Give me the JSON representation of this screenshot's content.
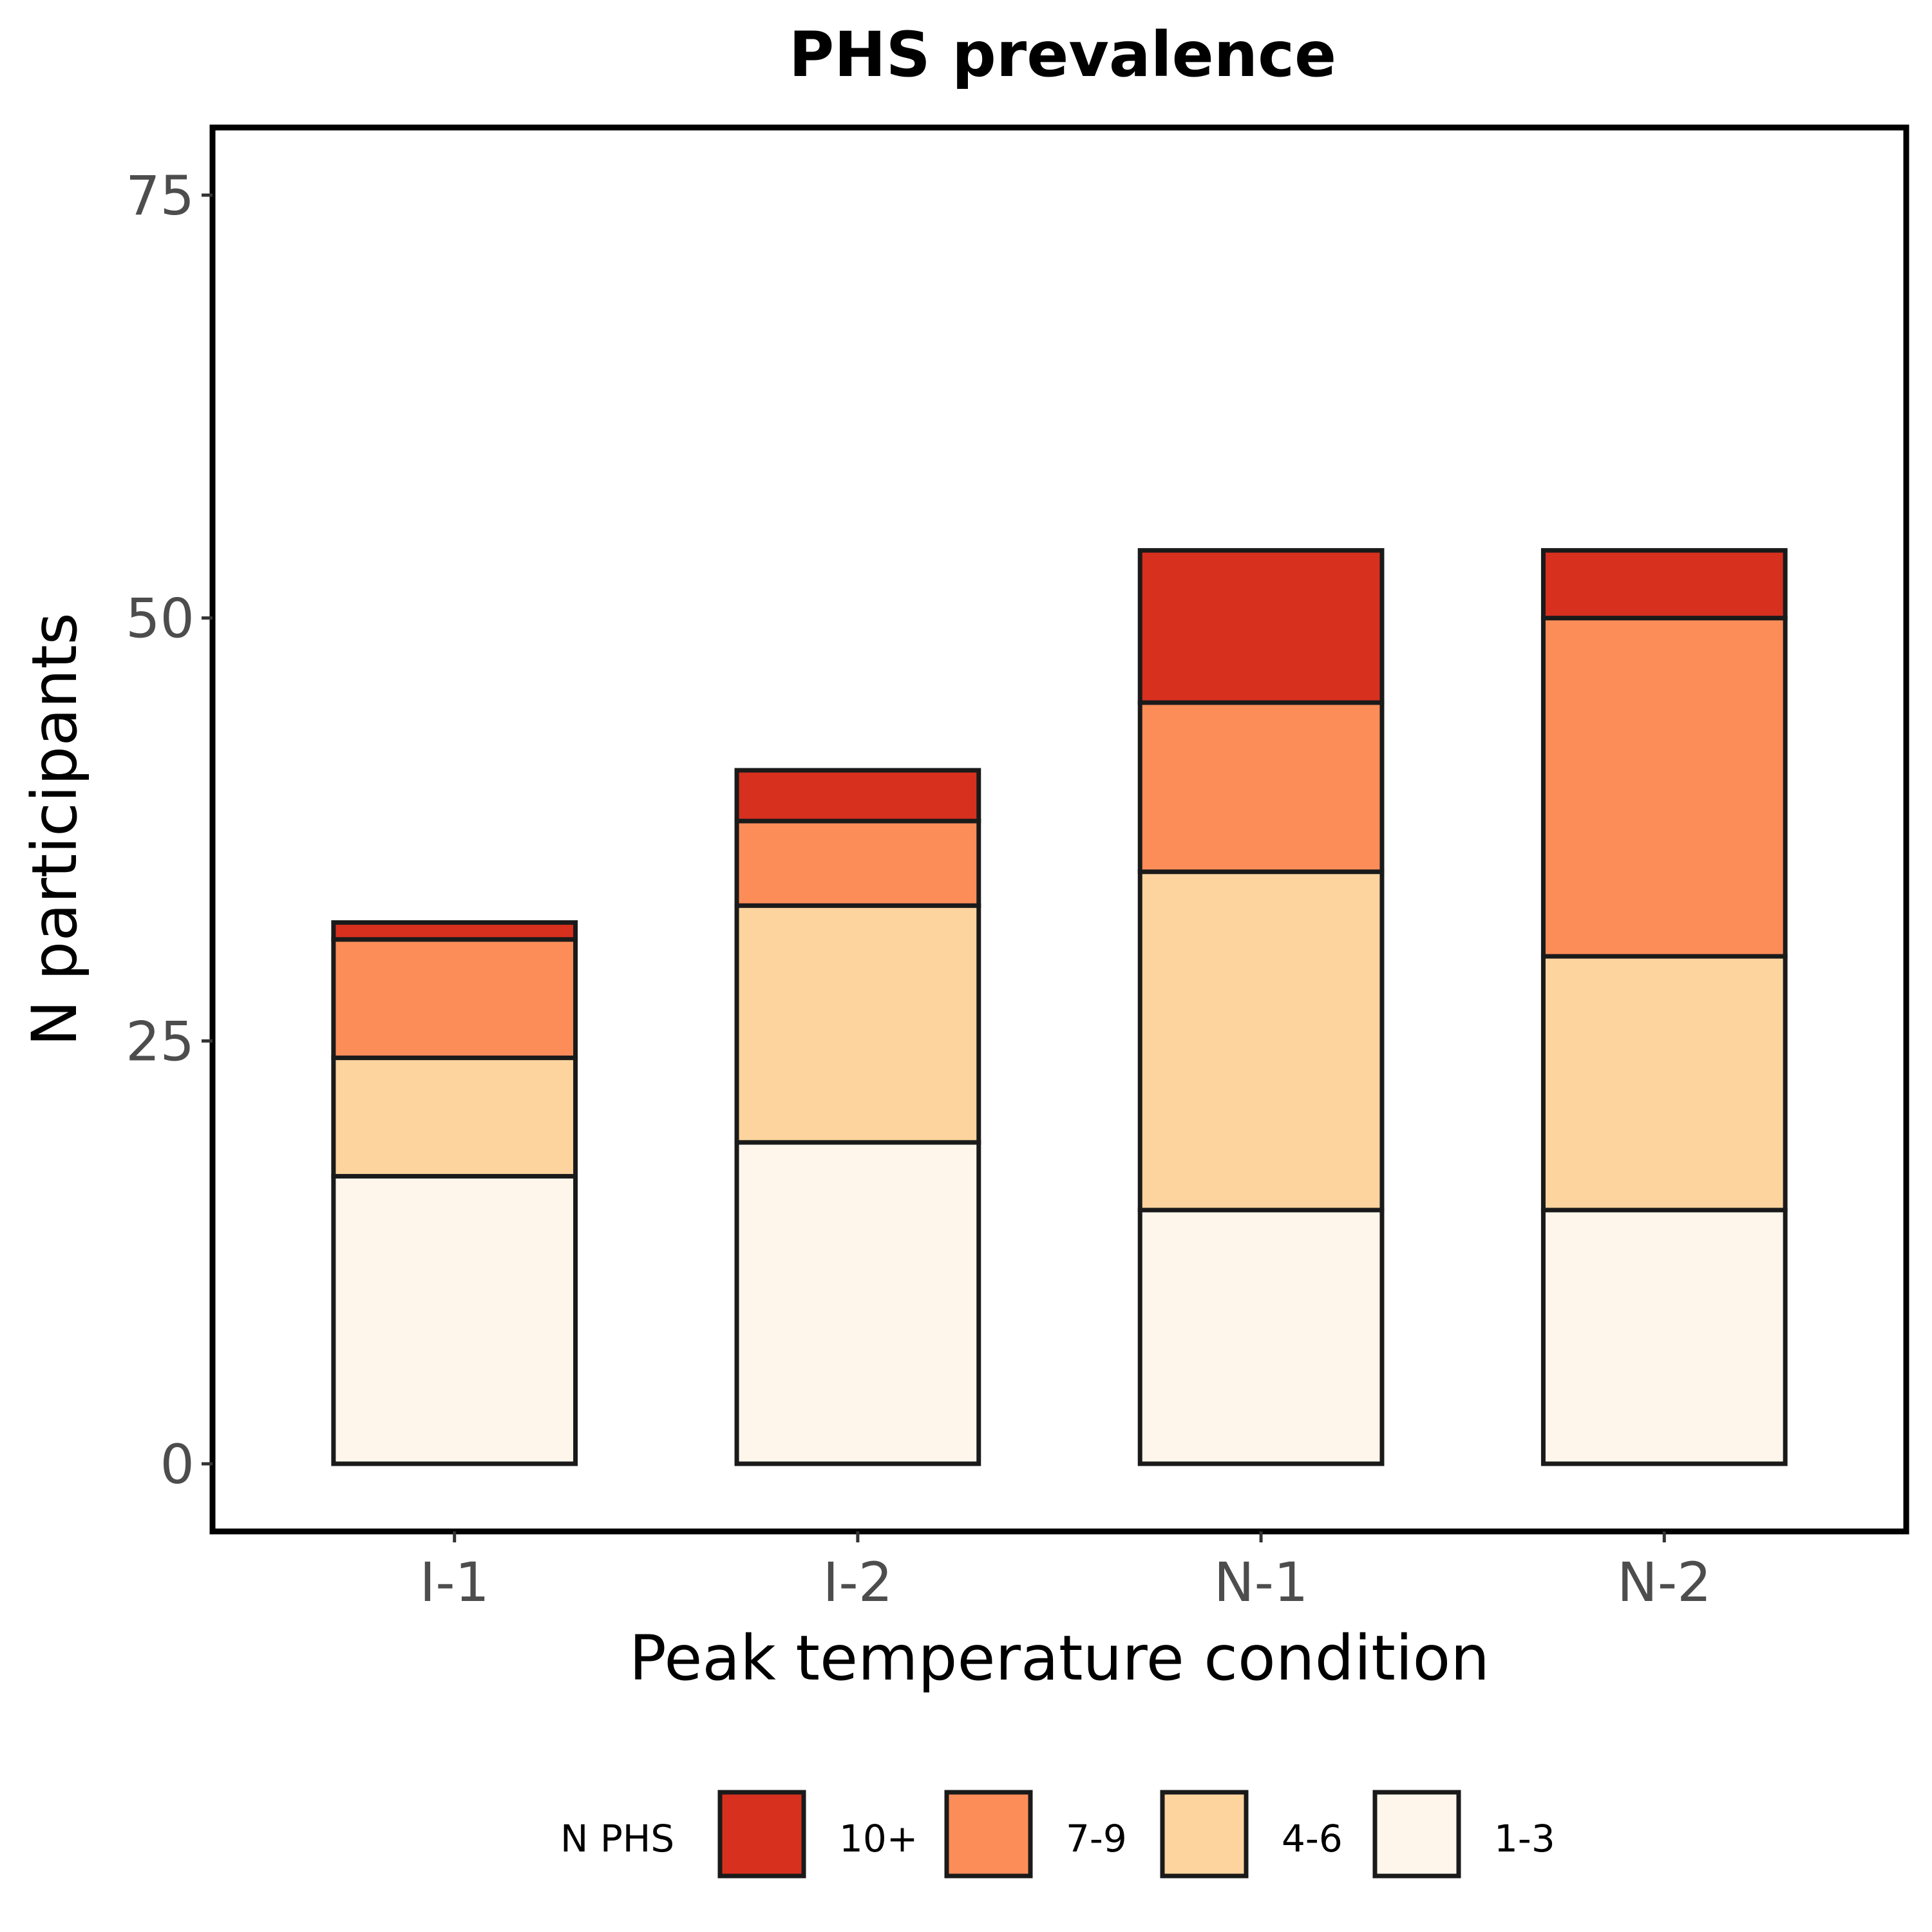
{
  "chart_data": {
    "type": "bar",
    "stacked": true,
    "title": "PHS prevalence",
    "xlabel": "Peak temperature condition",
    "ylabel": "N participants",
    "categories": [
      "I-1",
      "I-2",
      "N-1",
      "N-2"
    ],
    "ylim": [
      -4,
      79
    ],
    "yticks": [
      0,
      25,
      50,
      75
    ],
    "grid": false,
    "legend": {
      "title": "N PHS",
      "position": "bottom",
      "order": [
        "10+",
        "7-9",
        "4-6",
        "1-3"
      ]
    },
    "series": [
      {
        "name": "1-3",
        "color": "#FEF6EB",
        "values": [
          17,
          19,
          15,
          15
        ]
      },
      {
        "name": "4-6",
        "color": "#FDD49E",
        "values": [
          7,
          14,
          20,
          15
        ]
      },
      {
        "name": "7-9",
        "color": "#FC8D59",
        "values": [
          7,
          5,
          10,
          20
        ]
      },
      {
        "name": "10+",
        "color": "#D7301F",
        "values": [
          1,
          3,
          9,
          4
        ]
      }
    ]
  }
}
